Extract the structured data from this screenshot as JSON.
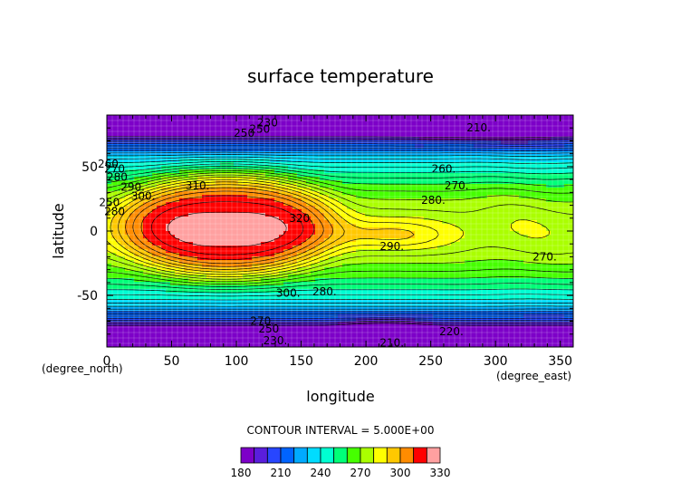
{
  "chart_data": {
    "type": "heatmap",
    "title": "surface temperature",
    "xlabel": "longitude",
    "ylabel": "latitude",
    "x_unit": "(degree_east)",
    "y_unit": "(degree_north)",
    "xlim": [
      0,
      360
    ],
    "ylim": [
      -90,
      90
    ],
    "x_ticks": [
      0,
      50,
      100,
      150,
      200,
      250,
      300,
      350
    ],
    "y_ticks": [
      -50,
      0,
      50
    ],
    "contour_interval_text": "CONTOUR INTERVAL = 5.000E+00",
    "contour_labels": [
      {
        "text": "230",
        "lon": 124,
        "lat": 84
      },
      {
        "text": "250",
        "lon": 118,
        "lat": 79
      },
      {
        "text": "250",
        "lon": 106,
        "lat": 76
      },
      {
        "text": "210.",
        "lon": 287,
        "lat": 80
      },
      {
        "text": "260.",
        "lon": 260,
        "lat": 48
      },
      {
        "text": "270.",
        "lon": 270,
        "lat": 35
      },
      {
        "text": "280.",
        "lon": 252,
        "lat": 24
      },
      {
        "text": "310.",
        "lon": 70,
        "lat": 35
      },
      {
        "text": "320.",
        "lon": 150,
        "lat": 10
      },
      {
        "text": "290.",
        "lon": 220,
        "lat": -12
      },
      {
        "text": "270.",
        "lon": 338,
        "lat": -20
      },
      {
        "text": "300.",
        "lon": 140,
        "lat": -48
      },
      {
        "text": "280.",
        "lon": 168,
        "lat": -47
      },
      {
        "text": "270.",
        "lon": 120,
        "lat": -70
      },
      {
        "text": "250",
        "lon": 125,
        "lat": -76
      },
      {
        "text": "230.",
        "lon": 130,
        "lat": -85
      },
      {
        "text": "210.",
        "lon": 220,
        "lat": -87
      },
      {
        "text": "220.",
        "lon": 266,
        "lat": -78
      },
      {
        "text": "260",
        "lon": 1,
        "lat": 52
      },
      {
        "text": "270",
        "lon": 6,
        "lat": 48
      },
      {
        "text": "280",
        "lon": 8,
        "lat": 42
      },
      {
        "text": "290.",
        "lon": 20,
        "lat": 34
      },
      {
        "text": "300.",
        "lon": 28,
        "lat": 27
      },
      {
        "text": "250",
        "lon": 2,
        "lat": 22
      },
      {
        "text": "280",
        "lon": 6,
        "lat": 15
      }
    ],
    "colorbar": {
      "levels": [
        180,
        190,
        200,
        210,
        220,
        230,
        240,
        250,
        260,
        270,
        280,
        290,
        300,
        310,
        320,
        330
      ],
      "colors": [
        "#7d00c8",
        "#5a1edc",
        "#2846ff",
        "#0064ff",
        "#00aaff",
        "#00dcff",
        "#00ffd2",
        "#00ff78",
        "#46ff00",
        "#aaff00",
        "#ffff00",
        "#ffc800",
        "#ff8c00",
        "#ff0000",
        "#ffa0a0"
      ],
      "tick_labels": [
        180,
        210,
        240,
        270,
        300,
        330
      ]
    }
  }
}
